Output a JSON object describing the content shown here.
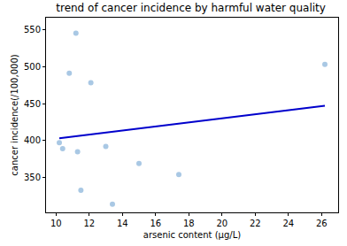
{
  "chart_data": {
    "type": "scatter",
    "title": "trend of cancer incidence by harmful water quality",
    "x_label": "arsenic content (µg/L)",
    "y_label": "cancer incidence(/100,000)",
    "xlim": [
      9.4,
      27
    ],
    "xticks": [
      10,
      12,
      14,
      16,
      18,
      20,
      22,
      24,
      26
    ],
    "ylim": [
      303,
      566
    ],
    "yticks": [
      350,
      400,
      450,
      500,
      550
    ],
    "grid": false,
    "series": [
      {
        "type": "scatter",
        "marker": "circle",
        "color": "#a9c8e4",
        "x": [
          10.2,
          10.4,
          10.8,
          11.2,
          11.3,
          11.5,
          12.1,
          13.0,
          13.4,
          15.0,
          17.4,
          26.2
        ],
        "values": [
          397,
          389,
          491,
          545,
          385,
          333,
          478,
          392,
          314,
          369,
          354,
          503
        ]
      },
      {
        "type": "line",
        "line_style": "solid",
        "color": "#0000cc",
        "x": [
          10.2,
          26.2
        ],
        "values": [
          403,
          447
        ]
      }
    ]
  }
}
